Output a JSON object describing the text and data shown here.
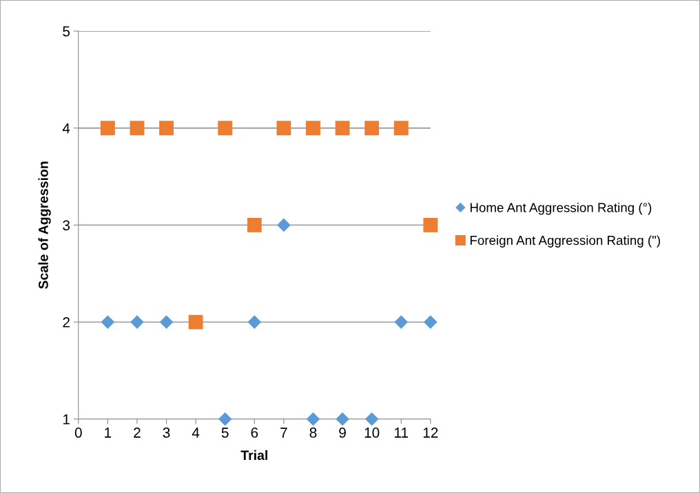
{
  "chart_data": {
    "type": "scatter",
    "xlabel": "Trial",
    "ylabel": "Scale of Aggression",
    "x": [
      1,
      2,
      3,
      4,
      5,
      6,
      7,
      8,
      9,
      10,
      11,
      12
    ],
    "series": [
      {
        "name": "Home Ant Aggression Rating (°)",
        "color": "#5b9bd5",
        "marker": "diamond",
        "values": [
          2,
          2,
          2,
          null,
          1,
          2,
          3,
          1,
          1,
          1,
          2,
          2
        ]
      },
      {
        "name": "Foreign Ant Aggression Rating (\")",
        "color": "#ed7d31",
        "marker": "square",
        "values": [
          4,
          4,
          4,
          2,
          4,
          3,
          4,
          4,
          4,
          4,
          4,
          3
        ]
      }
    ],
    "xlim": [
      0,
      12
    ],
    "xticks": [
      0,
      1,
      2,
      3,
      4,
      5,
      6,
      7,
      8,
      9,
      10,
      11,
      12
    ],
    "ylim": [
      1,
      5
    ],
    "yticks": [
      1,
      2,
      3,
      4,
      5
    ],
    "grid": "y",
    "legend": "right"
  }
}
